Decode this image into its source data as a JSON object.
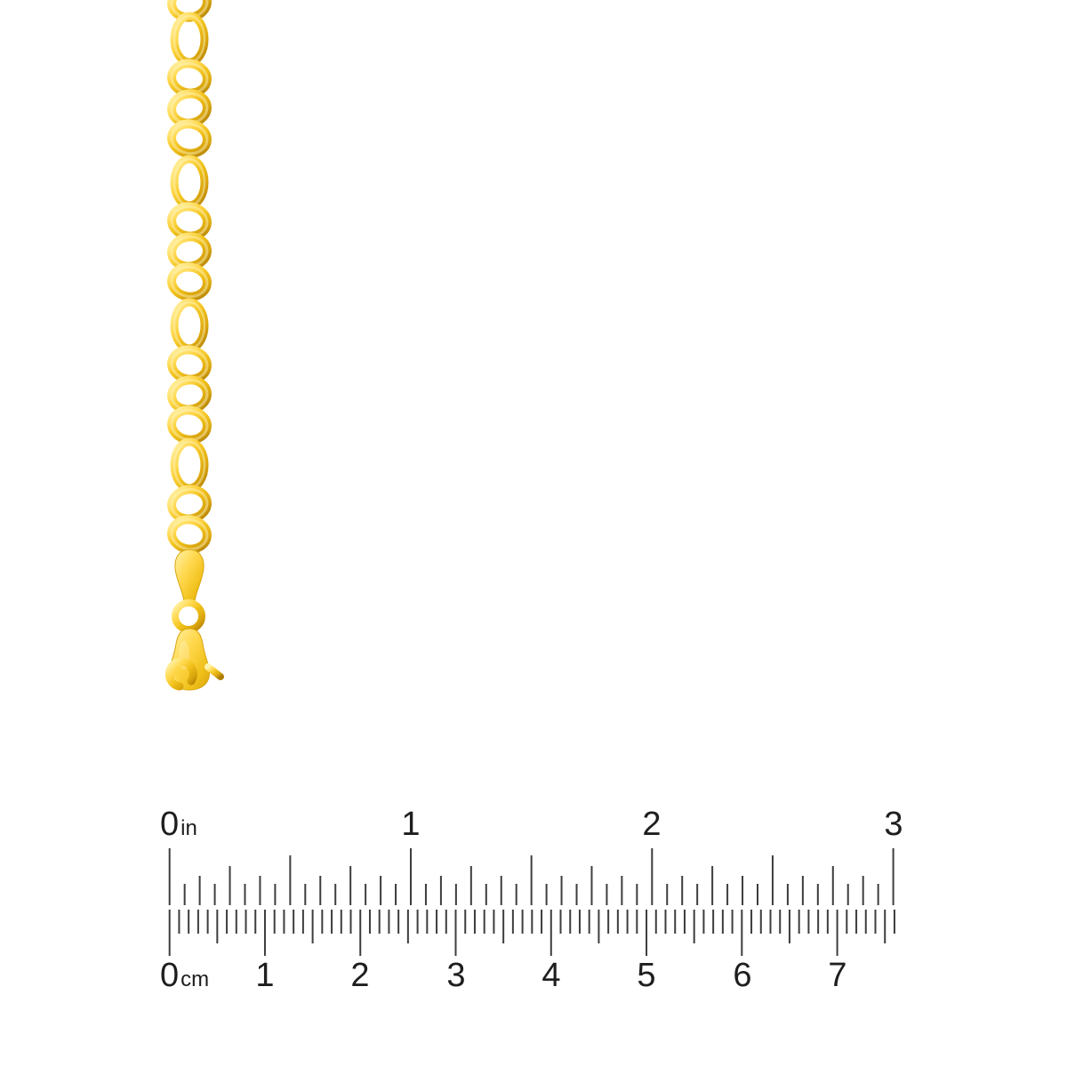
{
  "page": {
    "background": "#ffffff"
  },
  "product": {
    "description": "Yellow gold figaro link chain with teardrop tag and lobster claw clasp",
    "colors": {
      "highlight": "#fff3ae",
      "bright": "#ffd84e",
      "base": "#f0c01a",
      "mid": "#d9a50e",
      "shadow": "#b07f04",
      "deep": "#8f6600"
    }
  },
  "ruler": {
    "tick_color": "#3d3d3d",
    "label_color": "#1e1e1e",
    "inch": {
      "unit": "in",
      "numbers": [
        "0",
        "1",
        "2",
        "3"
      ],
      "whole_count": 3,
      "subdivisions_per_inch": 16
    },
    "cm": {
      "unit": "cm",
      "numbers": [
        "0",
        "1",
        "2",
        "3",
        "4",
        "5",
        "6",
        "7"
      ],
      "total_mm": 76
    }
  }
}
